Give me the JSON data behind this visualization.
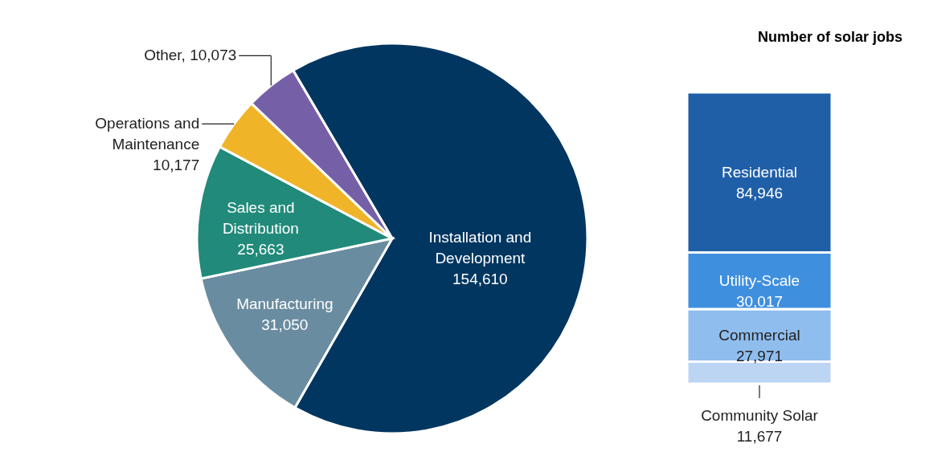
{
  "chart_data": [
    {
      "type": "pie",
      "categories": [
        "Installation and Development",
        "Manufacturing",
        "Sales and Distribution",
        "Operations and Maintenance",
        "Other"
      ],
      "values": [
        154610,
        31050,
        25663,
        10177,
        10073
      ],
      "colors": [
        "#003660",
        "#6a8ca0",
        "#218a7a",
        "#f0b429",
        "#7560a8"
      ],
      "value_labels": [
        "154,610",
        "31,050",
        "25,663",
        "10,177",
        "10,073"
      ],
      "legend": false
    },
    {
      "type": "bar",
      "title": "Number of solar jobs",
      "stacked": true,
      "categories": [
        null
      ],
      "legend": false,
      "series": [
        {
          "name": "Community Solar",
          "color": "#bcd5f3",
          "values": [
            11677
          ],
          "value_labels": [
            "11,677"
          ]
        },
        {
          "name": "Commercial",
          "color": "#8fbdee",
          "values": [
            27971
          ],
          "value_labels": [
            "27,971"
          ]
        },
        {
          "name": "Utility-Scale",
          "color": "#3f8fdf",
          "values": [
            30017
          ],
          "value_labels": [
            "30,017"
          ]
        },
        {
          "name": "Residential",
          "color": "#1f5fa8",
          "values": [
            84946
          ],
          "value_labels": [
            "84,946"
          ]
        }
      ]
    }
  ]
}
